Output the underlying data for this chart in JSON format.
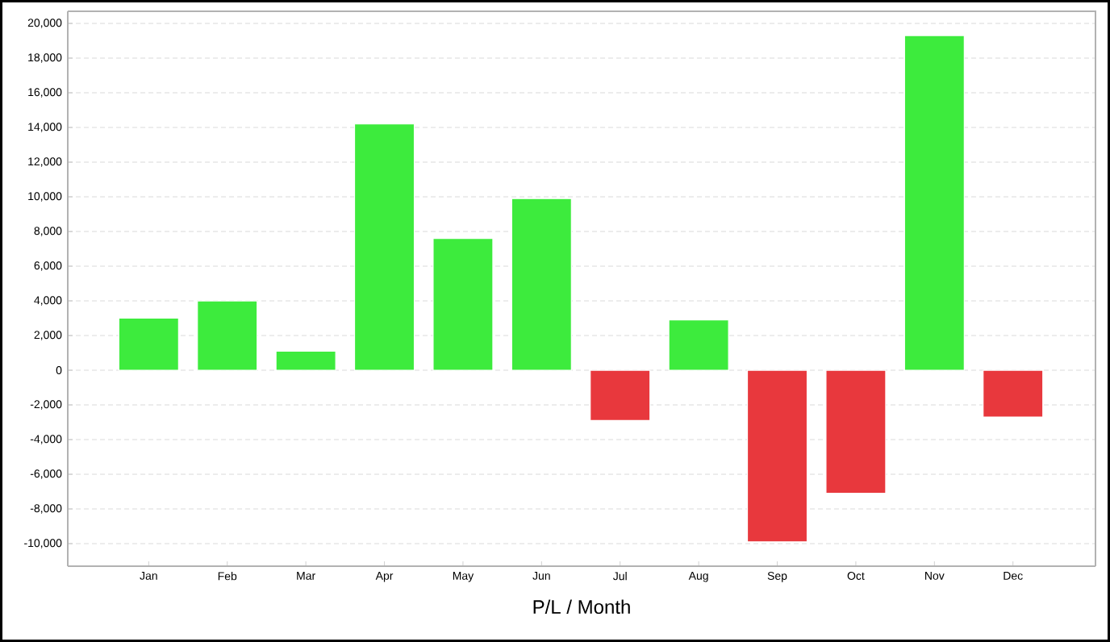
{
  "chart_data": {
    "type": "bar",
    "xlabel": "P/L / Month",
    "categories": [
      "Jan",
      "Feb",
      "Mar",
      "Apr",
      "May",
      "Jun",
      "Jul",
      "Aug",
      "Sep",
      "Oct",
      "Nov",
      "Dec"
    ],
    "values": [
      3000,
      4000,
      1100,
      14200,
      7600,
      9900,
      -2900,
      2900,
      -9900,
      -7100,
      19300,
      -2700
    ],
    "colors": [
      "#3deb3d",
      "#3deb3d",
      "#3deb3d",
      "#3deb3d",
      "#3deb3d",
      "#3deb3d",
      "#e8383d",
      "#3deb3d",
      "#e8383d",
      "#e8383d",
      "#3deb3d",
      "#e8383d"
    ],
    "ylim": [
      -11300,
      20700
    ],
    "yticks": [
      {
        "value": -10000,
        "label": "-10,000"
      },
      {
        "value": -8000,
        "label": "-8,000"
      },
      {
        "value": -6000,
        "label": "-6,000"
      },
      {
        "value": -4000,
        "label": "-4,000"
      },
      {
        "value": -2000,
        "label": "-2,000"
      },
      0,
      {
        "value": 2000,
        "label": "2,000"
      },
      {
        "value": 4000,
        "label": "4,000"
      },
      {
        "value": 6000,
        "label": "6,000"
      },
      {
        "value": 8000,
        "label": "8,000"
      },
      {
        "value": 10000,
        "label": "10,000"
      },
      {
        "value": 12000,
        "label": "12,000"
      },
      {
        "value": 14000,
        "label": "14,000"
      },
      {
        "value": 16000,
        "label": "16,000"
      },
      {
        "value": 18000,
        "label": "18,000"
      },
      {
        "value": 20000,
        "label": "20,000"
      }
    ],
    "grid": "y"
  }
}
